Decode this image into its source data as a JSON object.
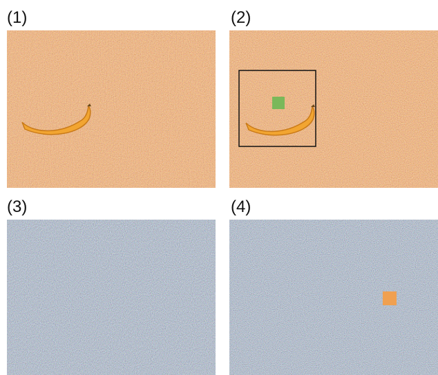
{
  "panels": [
    {
      "label": "(1)",
      "noise": "orange",
      "content": "banana"
    },
    {
      "label": "(2)",
      "noise": "orange",
      "content": "banana-with-green-square-and-box"
    },
    {
      "label": "(3)",
      "noise": "blue-gray",
      "content": "noise-only"
    },
    {
      "label": "(4)",
      "noise": "blue-gray",
      "content": "orange-square"
    }
  ],
  "colors": {
    "orange_noise_base": "#c8722f",
    "bluegray_noise_base": "#7a8a92",
    "banana": "#f2a531",
    "banana_shadow": "#c97a18",
    "green_square": "#7ab85a",
    "orange_square": "#f0a050",
    "box_stroke": "#111111"
  }
}
